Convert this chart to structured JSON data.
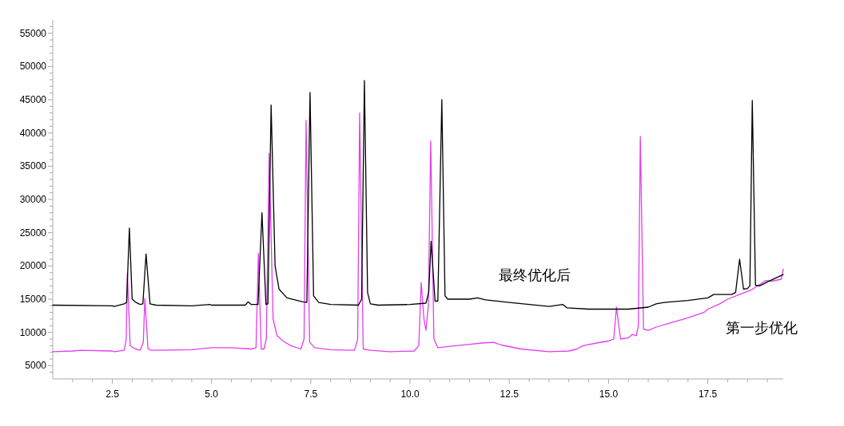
{
  "chart_data": {
    "type": "line",
    "xlim": [
      1.0,
      19.4
    ],
    "ylim": [
      3000,
      57000
    ],
    "xticks": [
      {
        "value": 1.5,
        "label": null
      },
      {
        "value": 2.0,
        "label": null
      },
      2.5,
      {
        "value": 3.0,
        "label": null
      },
      {
        "value": 3.5,
        "label": null
      },
      {
        "value": 4.0,
        "label": null
      },
      {
        "value": 4.5,
        "label": null
      },
      {
        "value": 5.0,
        "label": "5.0"
      },
      {
        "value": 5.5,
        "label": null
      },
      {
        "value": 6.0,
        "label": null
      },
      {
        "value": 6.5,
        "label": null
      },
      {
        "value": 7.0,
        "label": null
      },
      7.5,
      {
        "value": 8.0,
        "label": null
      },
      {
        "value": 8.5,
        "label": null
      },
      {
        "value": 9.0,
        "label": null
      },
      {
        "value": 9.5,
        "label": null
      },
      {
        "value": 10.0,
        "label": "10.0"
      },
      {
        "value": 10.5,
        "label": null
      },
      {
        "value": 11.0,
        "label": null
      },
      {
        "value": 11.5,
        "label": null
      },
      {
        "value": 12.0,
        "label": null
      },
      12.5,
      {
        "value": 13.0,
        "label": null
      },
      {
        "value": 13.5,
        "label": null
      },
      {
        "value": 14.0,
        "label": null
      },
      {
        "value": 14.5,
        "label": null
      },
      {
        "value": 15.0,
        "label": "15.0"
      },
      {
        "value": 15.5,
        "label": null
      },
      {
        "value": 16.0,
        "label": null
      },
      {
        "value": 16.5,
        "label": null
      },
      {
        "value": 17.0,
        "label": null
      },
      17.5,
      {
        "value": 18.0,
        "label": null
      },
      {
        "value": 18.5,
        "label": null
      },
      {
        "value": 19.0,
        "label": null
      }
    ],
    "yticks": [
      {
        "value": 4000,
        "label": null
      },
      5000,
      {
        "value": 6000,
        "label": null
      },
      {
        "value": 7000,
        "label": null
      },
      {
        "value": 8000,
        "label": null
      },
      {
        "value": 9000,
        "label": null
      },
      10000,
      {
        "value": 11000,
        "label": null
      },
      {
        "value": 12000,
        "label": null
      },
      {
        "value": 13000,
        "label": null
      },
      {
        "value": 14000,
        "label": null
      },
      15000,
      {
        "value": 16000,
        "label": null
      },
      {
        "value": 17000,
        "label": null
      },
      {
        "value": 18000,
        "label": null
      },
      {
        "value": 19000,
        "label": null
      },
      20000,
      {
        "value": 21000,
        "label": null
      },
      {
        "value": 22000,
        "label": null
      },
      {
        "value": 23000,
        "label": null
      },
      {
        "value": 24000,
        "label": null
      },
      25000,
      {
        "value": 26000,
        "label": null
      },
      {
        "value": 27000,
        "label": null
      },
      {
        "value": 28000,
        "label": null
      },
      {
        "value": 29000,
        "label": null
      },
      30000,
      {
        "value": 31000,
        "label": null
      },
      {
        "value": 32000,
        "label": null
      },
      {
        "value": 33000,
        "label": null
      },
      {
        "value": 34000,
        "label": null
      },
      35000,
      {
        "value": 36000,
        "label": null
      },
      {
        "value": 37000,
        "label": null
      },
      {
        "value": 38000,
        "label": null
      },
      {
        "value": 39000,
        "label": null
      },
      40000,
      {
        "value": 41000,
        "label": null
      },
      {
        "value": 42000,
        "label": null
      },
      {
        "value": 43000,
        "label": null
      },
      {
        "value": 44000,
        "label": null
      },
      45000,
      {
        "value": 46000,
        "label": null
      },
      {
        "value": 47000,
        "label": null
      },
      {
        "value": 48000,
        "label": null
      },
      {
        "value": 49000,
        "label": null
      },
      50000,
      {
        "value": 51000,
        "label": null
      },
      {
        "value": 52000,
        "label": null
      },
      {
        "value": 53000,
        "label": null
      },
      {
        "value": 54000,
        "label": null
      },
      55000,
      {
        "value": 56000,
        "label": null
      }
    ],
    "series": [
      {
        "name": "第一步优化",
        "color": "#e23ef0",
        "x": [
          1.0,
          1.5,
          1.7,
          2.5,
          2.55,
          2.8,
          2.85,
          2.88,
          2.95,
          3.05,
          3.15,
          3.2,
          3.28,
          3.32,
          3.4,
          3.5,
          4.5,
          5.0,
          5.5,
          6.0,
          6.12,
          6.18,
          6.25,
          6.32,
          6.38,
          6.45,
          6.55,
          6.65,
          6.8,
          7.0,
          7.25,
          7.33,
          7.38,
          7.47,
          7.6,
          8.0,
          8.6,
          8.68,
          8.73,
          8.82,
          9.0,
          9.5,
          10.1,
          10.22,
          10.28,
          10.35,
          10.4,
          10.46,
          10.52,
          10.6,
          10.7,
          11.0,
          11.5,
          11.8,
          12.1,
          12.3,
          12.8,
          13.5,
          14.0,
          14.2,
          14.35,
          14.7,
          15.0,
          15.13,
          15.2,
          15.3,
          15.5,
          15.6,
          15.7,
          15.75,
          15.8,
          15.88,
          16.0,
          16.2,
          16.6,
          17.0,
          17.4,
          17.5,
          17.8,
          18.0,
          18.3,
          18.6,
          18.8,
          18.95,
          19.1,
          19.35,
          19.4
        ],
        "values": [
          7100,
          7200,
          7300,
          7200,
          7100,
          7300,
          9000,
          18900,
          8000,
          7600,
          7400,
          7300,
          8500,
          15100,
          7500,
          7300,
          7400,
          7700,
          7700,
          7500,
          7700,
          21900,
          7500,
          7500,
          9000,
          36900,
          12000,
          9500,
          8700,
          8000,
          7500,
          9000,
          41900,
          8500,
          7700,
          7400,
          7300,
          9000,
          43000,
          7500,
          7300,
          7100,
          7200,
          8000,
          17500,
          12000,
          10300,
          14000,
          38800,
          9000,
          7700,
          7900,
          8200,
          8400,
          8500,
          8100,
          7500,
          7100,
          7200,
          7500,
          8000,
          8400,
          8700,
          9000,
          13800,
          9000,
          9200,
          9700,
          9500,
          11000,
          39500,
          10500,
          10300,
          10800,
          11500,
          12200,
          13000,
          13500,
          14300,
          15000,
          15700,
          16400,
          17200,
          17800,
          17700,
          18000,
          19500
        ]
      },
      {
        "name": "最终优化后",
        "color": "#000000",
        "x": [
          1.0,
          2.5,
          2.55,
          2.8,
          2.86,
          2.93,
          3.0,
          3.1,
          3.2,
          3.27,
          3.35,
          3.45,
          3.6,
          4.5,
          4.95,
          5.0,
          5.85,
          5.92,
          6.0,
          6.17,
          6.27,
          6.37,
          6.42,
          6.5,
          6.6,
          6.7,
          6.9,
          7.1,
          7.3,
          7.4,
          7.48,
          7.57,
          7.7,
          8.0,
          8.7,
          8.78,
          8.85,
          8.93,
          9.0,
          9.2,
          10.0,
          10.4,
          10.47,
          10.53,
          10.63,
          10.7,
          10.8,
          10.88,
          10.95,
          11.5,
          11.7,
          11.9,
          12.5,
          13.5,
          13.85,
          13.95,
          14.5,
          15.5,
          16.0,
          16.2,
          16.4,
          17.0,
          17.5,
          17.65,
          18.1,
          18.2,
          18.3,
          18.4,
          18.5,
          18.56,
          18.62,
          18.7,
          18.8,
          19.0,
          19.4
        ],
        "values": [
          14100,
          14000,
          13900,
          14300,
          14500,
          25700,
          15000,
          14500,
          14200,
          14300,
          21800,
          14300,
          14100,
          14000,
          14200,
          14100,
          14100,
          14600,
          14200,
          14200,
          28000,
          14200,
          14300,
          44200,
          20000,
          16500,
          15200,
          14900,
          14600,
          14500,
          46100,
          15500,
          14500,
          14200,
          14100,
          15000,
          47900,
          16000,
          14300,
          14100,
          14200,
          14400,
          16000,
          23700,
          14700,
          14700,
          45000,
          15500,
          15000,
          15000,
          15200,
          14900,
          14500,
          13900,
          14200,
          13700,
          13500,
          13500,
          13800,
          14300,
          14500,
          14800,
          15200,
          15700,
          15700,
          16000,
          21000,
          16500,
          16600,
          17000,
          44900,
          17100,
          17000,
          17600,
          18700
        ]
      }
    ]
  }
}
